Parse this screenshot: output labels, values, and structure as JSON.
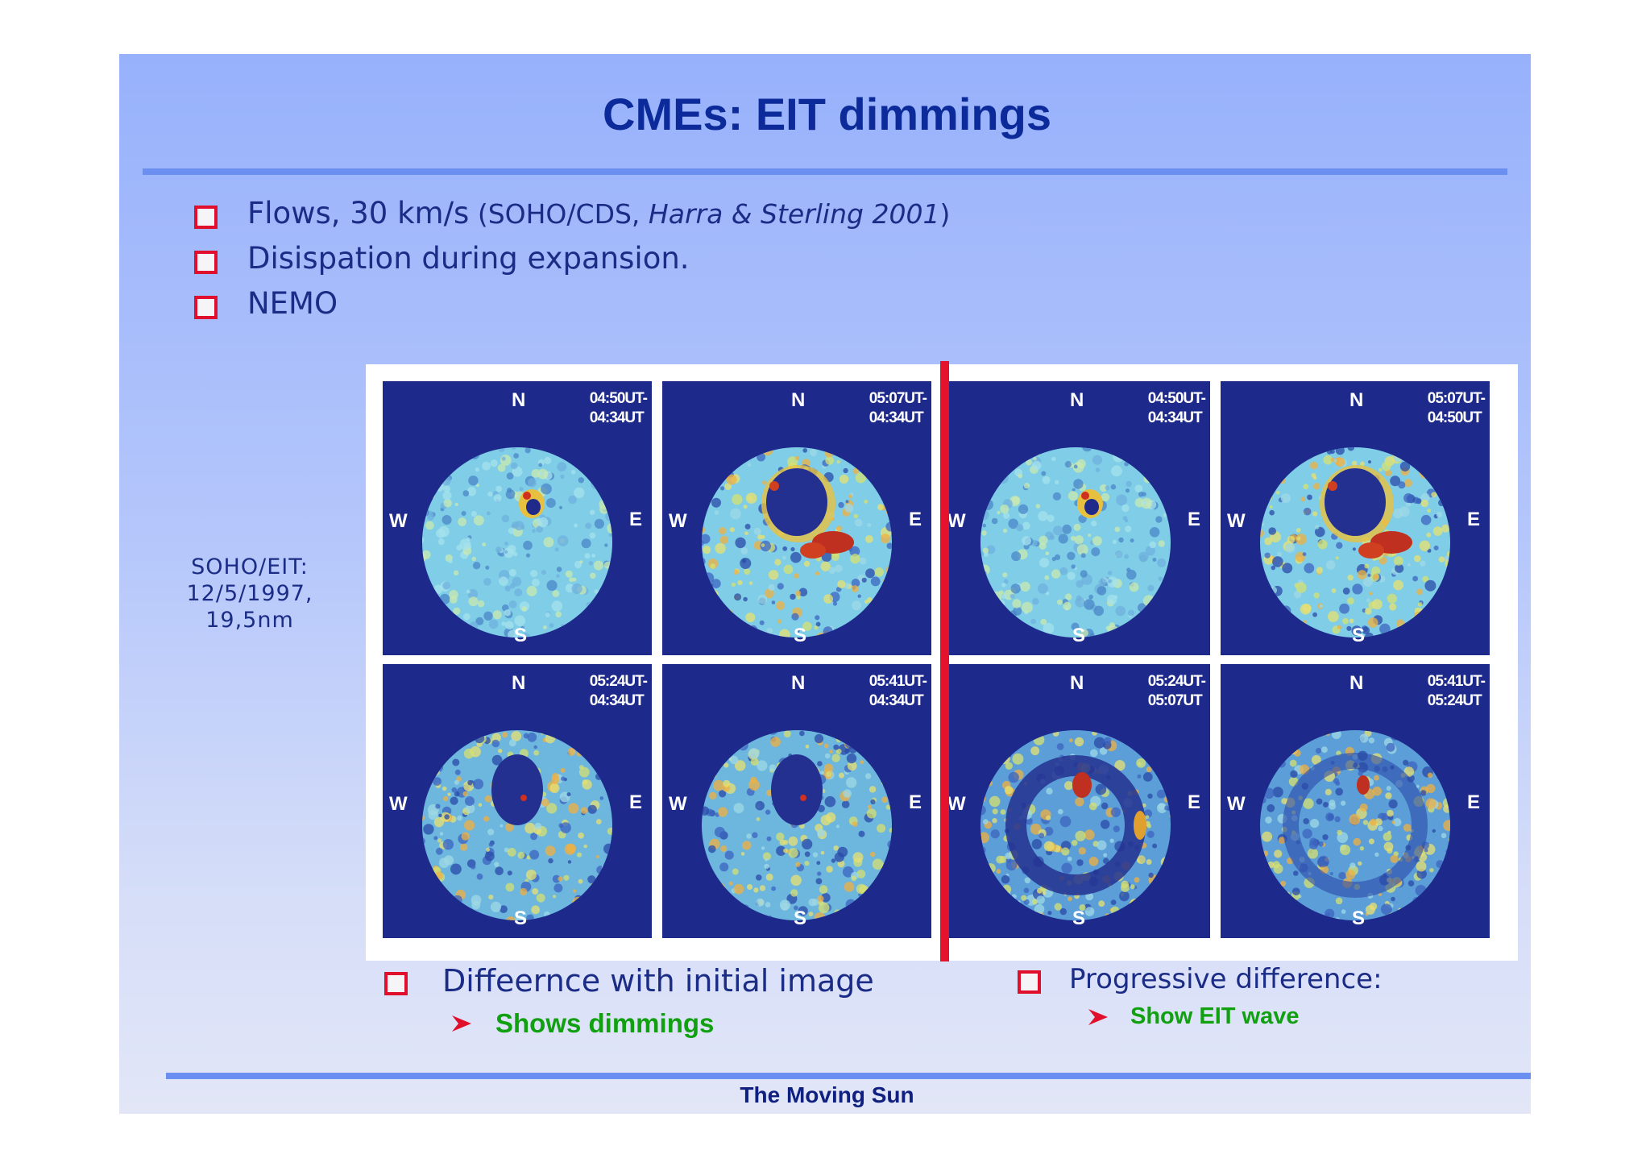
{
  "title": "CMEs: EIT dimmings",
  "bullets": [
    {
      "main": "Flows, 30 km/s",
      "paren_open": " (SOHO/CDS, ",
      "citation": "Harra & Sterling 2001",
      "paren_close": ")"
    },
    {
      "main": "Disispation during expansion."
    },
    {
      "main": "NEMO"
    }
  ],
  "side_caption": [
    "SOHO/EIT:",
    "12/5/1997,",
    "19,5nm"
  ],
  "directions": {
    "north": "N",
    "south": "S",
    "west": "W",
    "east": "E"
  },
  "panels": [
    {
      "time": [
        "04:50UT-",
        "04:34UT"
      ],
      "variant": "light-small"
    },
    {
      "time": [
        "05:07UT-",
        "04:34UT"
      ],
      "variant": "dimming-hot"
    },
    {
      "time": [
        "04:50UT-",
        "04:34UT"
      ],
      "variant": "light-small"
    },
    {
      "time": [
        "05:07UT-",
        "04:50UT"
      ],
      "variant": "dimming-hot"
    },
    {
      "time": [
        "05:24UT-",
        "04:34UT"
      ],
      "variant": "dimming-mid"
    },
    {
      "time": [
        "05:41UT-",
        "04:34UT"
      ],
      "variant": "dimming-mid"
    },
    {
      "time": [
        "05:24UT-",
        "05:07UT"
      ],
      "variant": "wave"
    },
    {
      "time": [
        "05:41UT-",
        "05:24UT"
      ],
      "variant": "wave-faint"
    }
  ],
  "left_note": {
    "heading": "Diffeernce with initial image",
    "sub": "Shows dimmings"
  },
  "right_note": {
    "heading": "Progressive difference:",
    "sub": "Show EIT wave"
  },
  "footer": "The Moving Sun",
  "colors": {
    "title": "#0c2a9a",
    "bullet_box": "#e0102c",
    "divider": "#e4122c",
    "green": "#10a010",
    "panel_bg": "#1d2a8c"
  }
}
